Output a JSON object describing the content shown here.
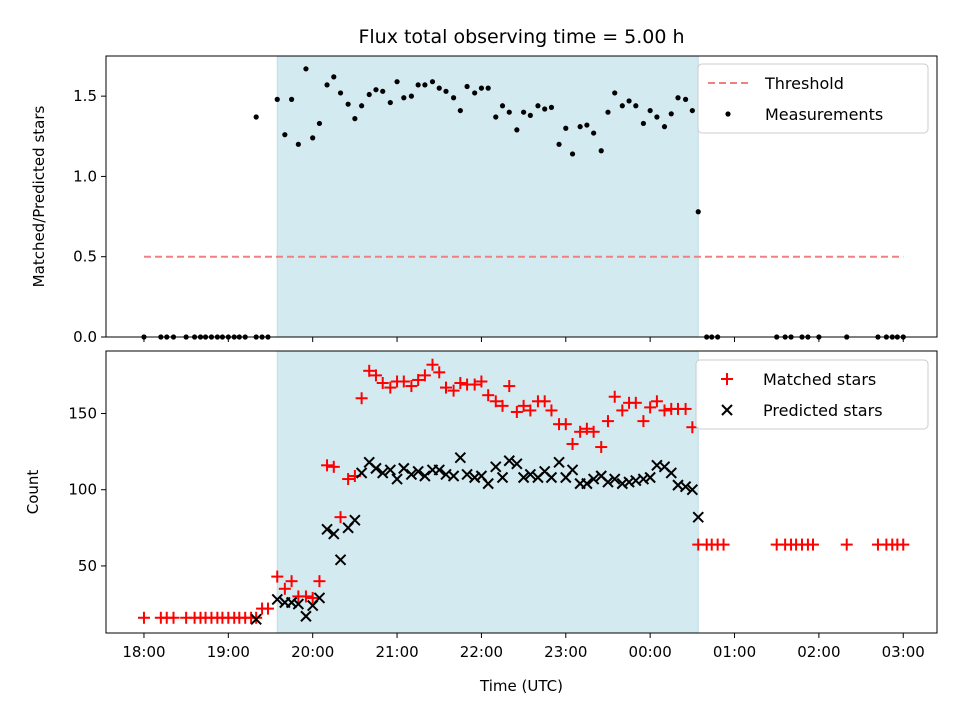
{
  "chart_data": {
    "title": "Flux total observing time = 5.00 h",
    "xlabel": "Time (UTC)",
    "x_unit": "hours after 18:00 UTC",
    "x_range": [
      -0.45,
      9.4
    ],
    "x_ticks": [
      {
        "h": 0,
        "label": "18:00"
      },
      {
        "h": 1,
        "label": "19:00"
      },
      {
        "h": 2,
        "label": "20:00"
      },
      {
        "h": 3,
        "label": "21:00"
      },
      {
        "h": 4,
        "label": "22:00"
      },
      {
        "h": 5,
        "label": "23:00"
      },
      {
        "h": 6,
        "label": "00:00"
      },
      {
        "h": 7,
        "label": "01:00"
      },
      {
        "h": 8,
        "label": "02:00"
      },
      {
        "h": 9,
        "label": "03:00"
      }
    ],
    "observing_span": [
      1.58,
      6.57
    ],
    "span_color": "#d3eaf1",
    "top": {
      "type": "scatter",
      "ylabel": "Matched/Predicted stars",
      "ylim": [
        0,
        1.75
      ],
      "yticks": [
        0.0,
        0.5,
        1.0,
        1.5
      ],
      "ytick_labels": [
        "0.0",
        "0.5",
        "1.0",
        "1.5"
      ],
      "threshold": {
        "name": "Threshold",
        "y": 0.5,
        "x_range": [
          0,
          9
        ],
        "color": "#f08080"
      },
      "measurements_name": "Measurements",
      "legend_position": "top-right",
      "measurements": [
        [
          0.0,
          0
        ],
        [
          0.2,
          0
        ],
        [
          0.27,
          0
        ],
        [
          0.35,
          0
        ],
        [
          0.5,
          0
        ],
        [
          0.6,
          0
        ],
        [
          0.67,
          0
        ],
        [
          0.73,
          0
        ],
        [
          0.8,
          0
        ],
        [
          0.87,
          0
        ],
        [
          0.93,
          0
        ],
        [
          1.0,
          0
        ],
        [
          1.07,
          0
        ],
        [
          1.13,
          0
        ],
        [
          1.2,
          0
        ],
        [
          1.33,
          0
        ],
        [
          1.4,
          0
        ],
        [
          1.47,
          0
        ],
        [
          1.33,
          1.37
        ],
        [
          1.58,
          1.48
        ],
        [
          1.67,
          1.26
        ],
        [
          1.75,
          1.48
        ],
        [
          1.83,
          1.2
        ],
        [
          1.92,
          1.67
        ],
        [
          2.0,
          1.24
        ],
        [
          2.08,
          1.33
        ],
        [
          2.17,
          1.57
        ],
        [
          2.25,
          1.62
        ],
        [
          2.33,
          1.52
        ],
        [
          2.42,
          1.45
        ],
        [
          2.5,
          1.36
        ],
        [
          2.58,
          1.44
        ],
        [
          2.67,
          1.51
        ],
        [
          2.75,
          1.54
        ],
        [
          2.83,
          1.53
        ],
        [
          2.92,
          1.46
        ],
        [
          3.0,
          1.59
        ],
        [
          3.08,
          1.49
        ],
        [
          3.17,
          1.5
        ],
        [
          3.25,
          1.57
        ],
        [
          3.33,
          1.57
        ],
        [
          3.42,
          1.59
        ],
        [
          3.5,
          1.55
        ],
        [
          3.58,
          1.53
        ],
        [
          3.67,
          1.49
        ],
        [
          3.75,
          1.41
        ],
        [
          3.83,
          1.56
        ],
        [
          3.92,
          1.52
        ],
        [
          4.0,
          1.55
        ],
        [
          4.08,
          1.55
        ],
        [
          4.17,
          1.37
        ],
        [
          4.25,
          1.44
        ],
        [
          4.33,
          1.4
        ],
        [
          4.42,
          1.29
        ],
        [
          4.5,
          1.4
        ],
        [
          4.58,
          1.38
        ],
        [
          4.67,
          1.44
        ],
        [
          4.75,
          1.42
        ],
        [
          4.83,
          1.43
        ],
        [
          4.92,
          1.2
        ],
        [
          5.0,
          1.3
        ],
        [
          5.08,
          1.14
        ],
        [
          5.17,
          1.31
        ],
        [
          5.25,
          1.32
        ],
        [
          5.33,
          1.27
        ],
        [
          5.42,
          1.16
        ],
        [
          5.5,
          1.4
        ],
        [
          5.58,
          1.52
        ],
        [
          5.67,
          1.44
        ],
        [
          5.75,
          1.47
        ],
        [
          5.83,
          1.44
        ],
        [
          5.92,
          1.33
        ],
        [
          6.0,
          1.41
        ],
        [
          6.08,
          1.37
        ],
        [
          6.17,
          1.31
        ],
        [
          6.25,
          1.39
        ],
        [
          6.33,
          1.49
        ],
        [
          6.42,
          1.48
        ],
        [
          6.5,
          1.41
        ],
        [
          6.57,
          0.78
        ],
        [
          6.67,
          0
        ],
        [
          6.73,
          0
        ],
        [
          6.8,
          0
        ],
        [
          7.5,
          0
        ],
        [
          7.6,
          0
        ],
        [
          7.67,
          0
        ],
        [
          7.8,
          0
        ],
        [
          7.87,
          0
        ],
        [
          8.0,
          0
        ],
        [
          8.33,
          0
        ],
        [
          8.7,
          0
        ],
        [
          8.8,
          0
        ],
        [
          8.87,
          0
        ],
        [
          8.93,
          0
        ],
        [
          9.0,
          0
        ]
      ]
    },
    "bottom": {
      "type": "scatter",
      "ylabel": "Count",
      "ylim": [
        6,
        191
      ],
      "yticks": [
        50,
        100,
        150
      ],
      "ytick_labels": [
        "50",
        "100",
        "150"
      ],
      "legend_position": "top-right",
      "series": [
        {
          "name": "Matched stars",
          "marker": "plus",
          "color": "#ff0000",
          "points": [
            [
              0.0,
              16
            ],
            [
              0.2,
              16
            ],
            [
              0.27,
              16
            ],
            [
              0.35,
              16
            ],
            [
              0.5,
              16
            ],
            [
              0.6,
              16
            ],
            [
              0.67,
              16
            ],
            [
              0.73,
              16
            ],
            [
              0.8,
              16
            ],
            [
              0.87,
              16
            ],
            [
              0.93,
              16
            ],
            [
              1.0,
              16
            ],
            [
              1.07,
              16
            ],
            [
              1.13,
              16
            ],
            [
              1.2,
              16
            ],
            [
              1.27,
              16
            ],
            [
              1.33,
              16
            ],
            [
              1.4,
              22
            ],
            [
              1.47,
              22
            ],
            [
              1.58,
              43
            ],
            [
              1.67,
              35
            ],
            [
              1.75,
              40
            ],
            [
              1.83,
              30
            ],
            [
              1.92,
              30
            ],
            [
              2.0,
              29
            ],
            [
              2.08,
              40
            ],
            [
              2.17,
              116
            ],
            [
              2.25,
              115
            ],
            [
              2.33,
              82
            ],
            [
              2.42,
              107
            ],
            [
              2.5,
              109
            ],
            [
              2.58,
              160
            ],
            [
              2.67,
              178
            ],
            [
              2.75,
              175
            ],
            [
              2.83,
              170
            ],
            [
              2.92,
              167
            ],
            [
              3.0,
              171
            ],
            [
              3.08,
              171
            ],
            [
              3.17,
              168
            ],
            [
              3.25,
              172
            ],
            [
              3.33,
              175
            ],
            [
              3.42,
              182
            ],
            [
              3.5,
              177
            ],
            [
              3.58,
              167
            ],
            [
              3.67,
              165
            ],
            [
              3.75,
              170
            ],
            [
              3.83,
              169
            ],
            [
              3.92,
              169
            ],
            [
              4.0,
              171
            ],
            [
              4.08,
              162
            ],
            [
              4.17,
              158
            ],
            [
              4.25,
              155
            ],
            [
              4.33,
              168
            ],
            [
              4.42,
              151
            ],
            [
              4.5,
              155
            ],
            [
              4.58,
              152
            ],
            [
              4.67,
              158
            ],
            [
              4.75,
              158
            ],
            [
              4.83,
              152
            ],
            [
              4.92,
              143
            ],
            [
              5.0,
              143
            ],
            [
              5.08,
              130
            ],
            [
              5.17,
              138
            ],
            [
              5.25,
              140
            ],
            [
              5.33,
              138
            ],
            [
              5.42,
              128
            ],
            [
              5.5,
              145
            ],
            [
              5.58,
              161
            ],
            [
              5.67,
              152
            ],
            [
              5.75,
              157
            ],
            [
              5.83,
              157
            ],
            [
              5.92,
              145
            ],
            [
              6.0,
              154
            ],
            [
              6.08,
              158
            ],
            [
              6.17,
              152
            ],
            [
              6.25,
              153
            ],
            [
              6.33,
              153
            ],
            [
              6.42,
              153
            ],
            [
              6.5,
              141
            ],
            [
              6.57,
              64
            ],
            [
              6.67,
              64
            ],
            [
              6.73,
              64
            ],
            [
              6.8,
              64
            ],
            [
              6.87,
              64
            ],
            [
              7.5,
              64
            ],
            [
              7.6,
              64
            ],
            [
              7.67,
              64
            ],
            [
              7.73,
              64
            ],
            [
              7.8,
              64
            ],
            [
              7.87,
              64
            ],
            [
              7.93,
              64
            ],
            [
              8.33,
              64
            ],
            [
              8.7,
              64
            ],
            [
              8.8,
              64
            ],
            [
              8.87,
              64
            ],
            [
              8.93,
              64
            ],
            [
              9.0,
              64
            ]
          ]
        },
        {
          "name": "Predicted stars",
          "marker": "x",
          "color": "#000000",
          "points": [
            [
              1.33,
              15
            ],
            [
              1.58,
              28
            ],
            [
              1.67,
              26
            ],
            [
              1.75,
              26
            ],
            [
              1.83,
              25
            ],
            [
              1.92,
              17
            ],
            [
              2.0,
              24
            ],
            [
              2.08,
              29
            ],
            [
              2.17,
              74
            ],
            [
              2.25,
              71
            ],
            [
              2.33,
              54
            ],
            [
              2.42,
              75
            ],
            [
              2.5,
              80
            ],
            [
              2.58,
              111
            ],
            [
              2.67,
              118
            ],
            [
              2.75,
              114
            ],
            [
              2.83,
              111
            ],
            [
              2.92,
              113
            ],
            [
              3.0,
              107
            ],
            [
              3.08,
              114
            ],
            [
              3.17,
              110
            ],
            [
              3.25,
              112
            ],
            [
              3.33,
              109
            ],
            [
              3.42,
              113
            ],
            [
              3.5,
              113
            ],
            [
              3.58,
              110
            ],
            [
              3.67,
              109
            ],
            [
              3.75,
              121
            ],
            [
              3.83,
              110
            ],
            [
              3.92,
              108
            ],
            [
              4.0,
              109
            ],
            [
              4.08,
              104
            ],
            [
              4.17,
              115
            ],
            [
              4.25,
              108
            ],
            [
              4.33,
              119
            ],
            [
              4.42,
              117
            ],
            [
              4.5,
              108
            ],
            [
              4.58,
              110
            ],
            [
              4.67,
              108
            ],
            [
              4.75,
              112
            ],
            [
              4.83,
              108
            ],
            [
              4.92,
              118
            ],
            [
              5.0,
              108
            ],
            [
              5.08,
              113
            ],
            [
              5.17,
              104
            ],
            [
              5.25,
              104
            ],
            [
              5.33,
              107
            ],
            [
              5.42,
              109
            ],
            [
              5.5,
              105
            ],
            [
              5.58,
              107
            ],
            [
              5.67,
              104
            ],
            [
              5.75,
              105
            ],
            [
              5.83,
              106
            ],
            [
              5.92,
              107
            ],
            [
              6.0,
              108
            ],
            [
              6.08,
              116
            ],
            [
              6.17,
              115
            ],
            [
              6.25,
              111
            ],
            [
              6.33,
              103
            ],
            [
              6.42,
              102
            ],
            [
              6.5,
              100
            ],
            [
              6.57,
              82
            ]
          ]
        }
      ]
    }
  }
}
